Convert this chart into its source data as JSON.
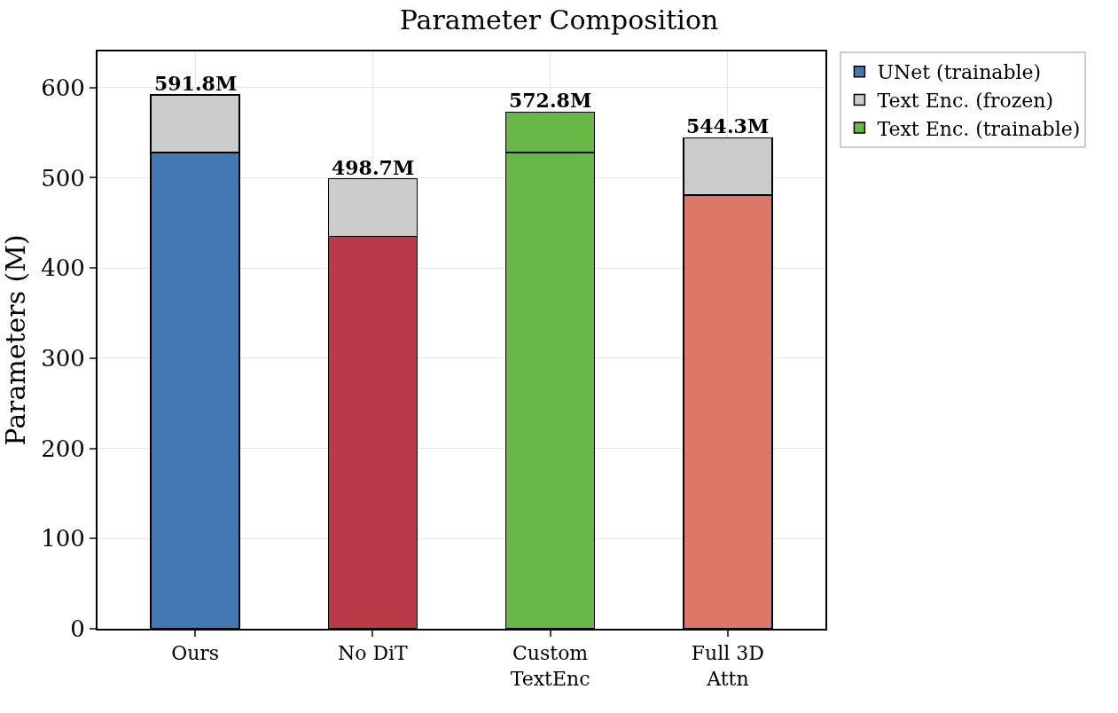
{
  "chart_data": {
    "type": "bar",
    "title": "Parameter Composition",
    "ylabel": "Parameters (M)",
    "categories": [
      "Ours",
      "No DiT",
      "Custom\nTextEnc",
      "Full 3D\nAttn"
    ],
    "stacked": true,
    "series": [
      {
        "name": "UNet (trainable)",
        "colors": [
          "#4279b5",
          "#bb3a4a",
          "#67b847",
          "#dd7868"
        ],
        "values": [
          528,
          435,
          528,
          480.5
        ]
      },
      {
        "name": "Text Enc. (frozen)",
        "color": "#cccccc",
        "values": [
          63.8,
          63.7,
          null,
          63.8
        ]
      },
      {
        "name": "Text Enc. (trainable)",
        "color": "#67b847",
        "values": [
          null,
          null,
          44.8,
          null
        ]
      }
    ],
    "totals": [
      "591.8M",
      "498.7M",
      "572.8M",
      "544.3M"
    ],
    "ylim": [
      0,
      640
    ],
    "yticks": [
      0,
      100,
      200,
      300,
      400,
      500,
      600
    ],
    "grid": true,
    "legend": "top right"
  }
}
